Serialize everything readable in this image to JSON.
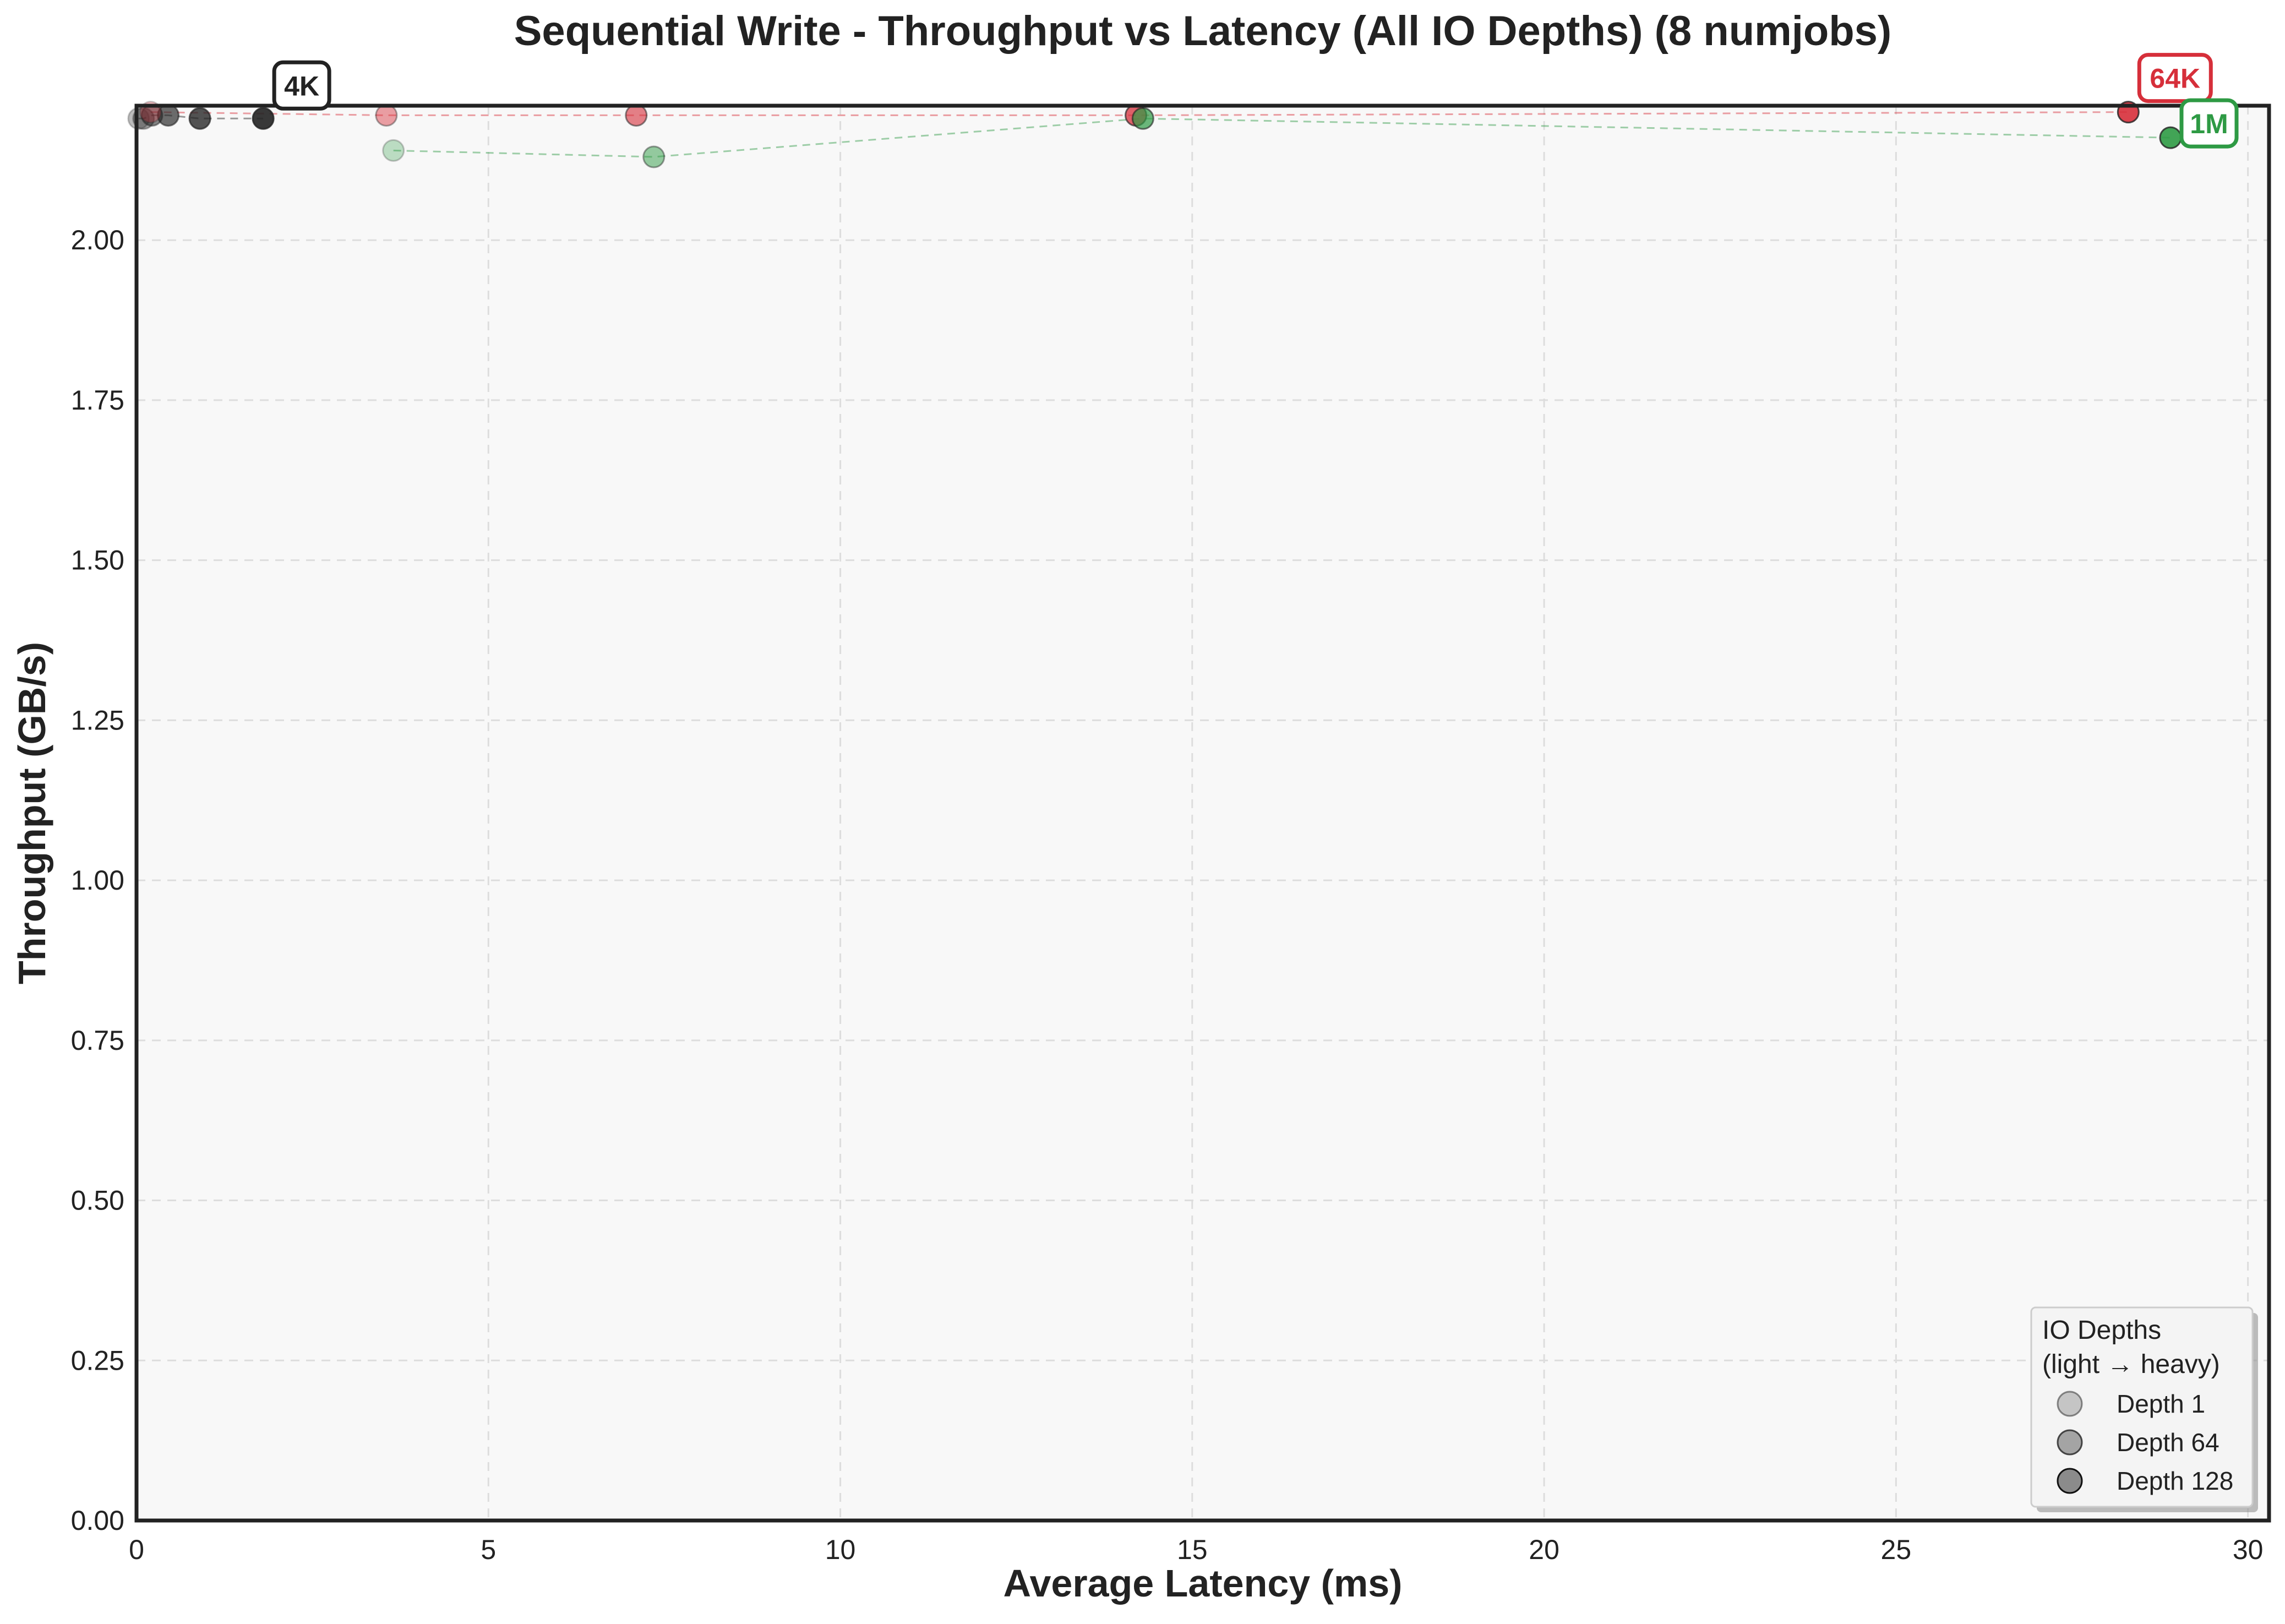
{
  "chart_data": {
    "type": "scatter",
    "title": "Sequential Write - Throughput vs Latency (All IO Depths) (8 numjobs)",
    "xlabel": "Average Latency (ms)",
    "ylabel": "Throughput (GB/s)",
    "xlim": [
      0,
      30.3
    ],
    "ylim": [
      0,
      2.21
    ],
    "x_ticks": [
      "0",
      "5",
      "10",
      "15",
      "20",
      "25",
      "30"
    ],
    "y_ticks": [
      "0.00",
      "0.25",
      "0.50",
      "0.75",
      "1.00",
      "1.25",
      "1.50",
      "1.75",
      "2.00"
    ],
    "grid": true,
    "series": [
      {
        "name": "4K",
        "color": "#222222",
        "points": [
          {
            "x": 0.03,
            "y": 2.19,
            "depth": 1
          },
          {
            "x": 0.1,
            "y": 2.19,
            "depth": 2
          },
          {
            "x": 0.22,
            "y": 2.195,
            "depth": 4
          },
          {
            "x": 0.45,
            "y": 2.195,
            "depth": 8
          },
          {
            "x": 0.9,
            "y": 2.19,
            "depth": 16
          },
          {
            "x": 1.8,
            "y": 2.19,
            "depth": 32
          }
        ]
      },
      {
        "name": "64K",
        "color": "#d62f3a",
        "points": [
          {
            "x": 0.2,
            "y": 2.2,
            "depth": 1
          },
          {
            "x": 3.55,
            "y": 2.195,
            "depth": 2
          },
          {
            "x": 7.1,
            "y": 2.195,
            "depth": 4
          },
          {
            "x": 14.2,
            "y": 2.195,
            "depth": 8
          },
          {
            "x": 28.3,
            "y": 2.2,
            "depth": 16
          }
        ]
      },
      {
        "name": "1M",
        "color": "#2e9a44",
        "points": [
          {
            "x": 3.65,
            "y": 2.14,
            "depth": 1
          },
          {
            "x": 7.35,
            "y": 2.13,
            "depth": 2
          },
          {
            "x": 14.3,
            "y": 2.19,
            "depth": 4
          },
          {
            "x": 28.9,
            "y": 2.16,
            "depth": 8
          }
        ]
      }
    ],
    "legend": {
      "placement": "bottom-right",
      "title_line1": "IO Depths",
      "title_line2": "(light → heavy)",
      "entries": [
        "Depth 1",
        "Depth 64",
        "Depth 128"
      ]
    }
  }
}
